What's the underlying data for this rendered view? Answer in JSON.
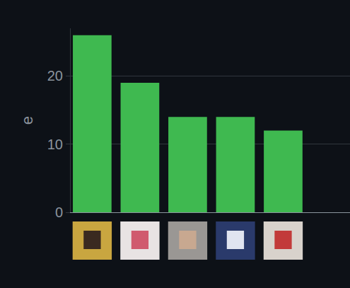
{
  "chart_data": {
    "type": "bar",
    "categories": [
      null,
      null,
      null,
      null,
      null
    ],
    "values": [
      26,
      19,
      14,
      14,
      12
    ],
    "color": "#3fb950",
    "ylabel": "e",
    "ylim": [
      0,
      27
    ],
    "yticks": [
      0,
      10,
      20
    ],
    "grid": true,
    "tick_labels": "y"
  }
}
